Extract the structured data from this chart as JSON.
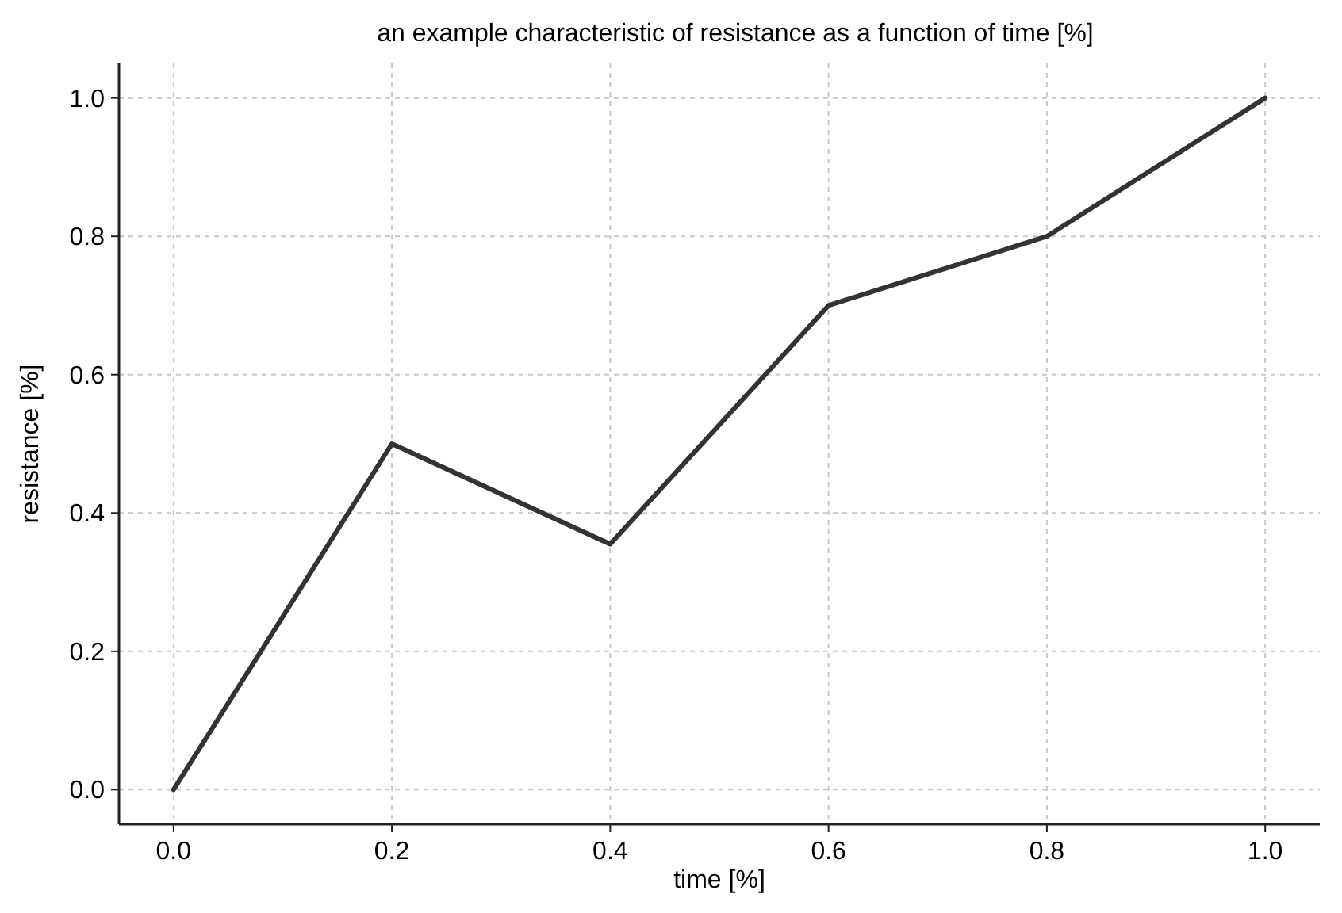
{
  "chart_data": {
    "type": "line",
    "title": "an example characteristic of resistance as a function of time [%]",
    "xlabel": "time [%]",
    "ylabel": "resistance [%]",
    "x": [
      0,
      0.2,
      0.4,
      0.6,
      0.8,
      1.0
    ],
    "series": [
      {
        "color": "#333333",
        "values": [
          0,
          0.5,
          0.355,
          0.7,
          0.8,
          1.0
        ]
      }
    ],
    "xlim": [
      -0.05,
      1.05
    ],
    "ylim": [
      -0.05,
      1.05
    ],
    "xticks": [
      {
        "value": 0,
        "label": "0.0"
      },
      0.2,
      0.4,
      0.6,
      0.8,
      {
        "value": 1,
        "label": "1.0"
      }
    ],
    "yticks": [
      {
        "value": 0,
        "label": "0.0"
      },
      0.2,
      0.4,
      0.6,
      0.8,
      {
        "value": 1,
        "label": "1.0"
      }
    ],
    "grid": true,
    "marker": "none",
    "line_style": "solid"
  }
}
